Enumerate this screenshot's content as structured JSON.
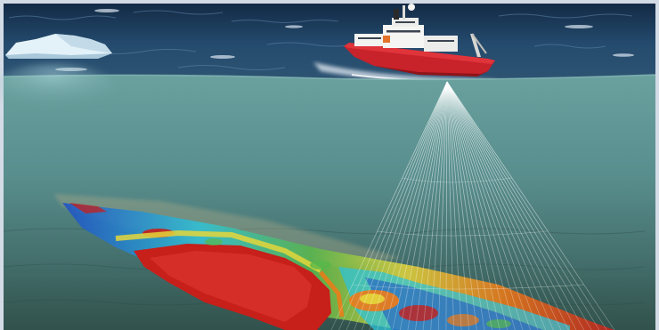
{
  "scene": {
    "description_tokens": [],
    "colors": {
      "frame": "#d3dbe6",
      "sea_surface_dark": "#1b3553",
      "sea_surface_mid": "#2e5274",
      "foam": "#e6eef6",
      "underwater_top": "#5f9696",
      "underwater_mid": "#4e8182",
      "seabed": "#3a5e58",
      "hull_red": "#c8222b",
      "superstructure_white": "#f2f2f0",
      "iceberg": "#dfeef7",
      "sonar_beam": "#ffffff",
      "bathymetry_red": "#c71f1a",
      "bathymetry_orange": "#f07a16",
      "bathymetry_yellow": "#e4d63a",
      "bathymetry_green": "#57b84a",
      "bathymetry_cyan": "#2ec3d8",
      "bathymetry_blue": "#1f4fc6"
    }
  }
}
